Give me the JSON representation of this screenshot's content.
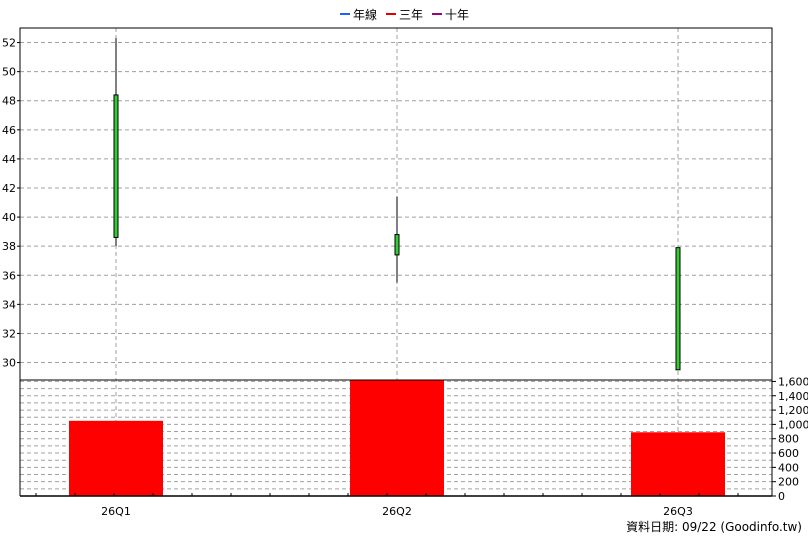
{
  "legend": [
    {
      "label": "年線",
      "color": "#1f5fff"
    },
    {
      "label": "三年",
      "color": "#e00000"
    },
    {
      "label": "十年",
      "color": "#a0007a"
    }
  ],
  "footer": "資料日期: 09/22  (Goodinfo.tw)",
  "colors": {
    "candle_up": "#33cc33",
    "candle_outline": "#000000",
    "volume_bar": "#ff0000",
    "grid": "#a0a0a0"
  },
  "chart_data": [
    {
      "type": "candlestick",
      "categories": [
        "26Q1",
        "26Q2",
        "26Q3"
      ],
      "open": [
        38.6,
        37.4,
        29.5
      ],
      "close": [
        48.4,
        38.8,
        37.9
      ],
      "high": [
        52.3,
        41.4,
        37.9
      ],
      "low": [
        38.0,
        35.5,
        29.5
      ],
      "ylim": [
        28.8,
        53.0
      ],
      "yticks": [
        30,
        32,
        34,
        36,
        38,
        40,
        42,
        44,
        46,
        48,
        50,
        52
      ],
      "grid": true
    },
    {
      "type": "bar",
      "categories": [
        "26Q1",
        "26Q2",
        "26Q3"
      ],
      "values": [
        1050,
        1620,
        890
      ],
      "ylim": [
        0,
        1620
      ],
      "yticks": [
        0,
        200,
        400,
        600,
        800,
        "1,000",
        "1,200",
        "1,400",
        "1,600"
      ],
      "grid": true
    }
  ]
}
